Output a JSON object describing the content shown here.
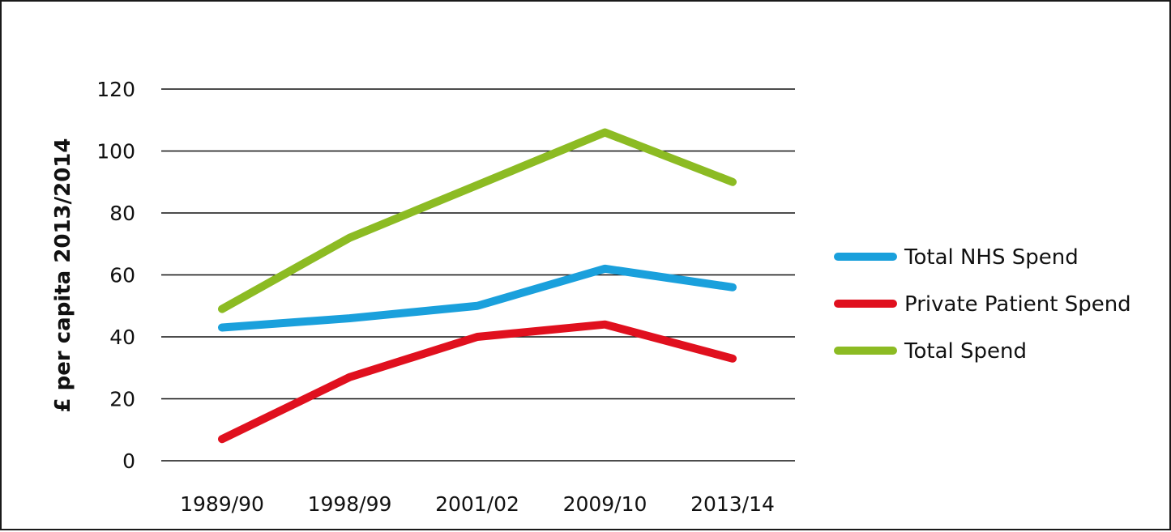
{
  "chart_data": {
    "type": "line",
    "title": "",
    "xlabel": "",
    "ylabel": "£ per capita 2013/2014",
    "categories": [
      "1989/90",
      "1998/99",
      "2001/02",
      "2009/10",
      "2013/14"
    ],
    "ylim": [
      0,
      120
    ],
    "yticks": [
      0,
      20,
      40,
      60,
      80,
      100,
      120
    ],
    "grid": true,
    "legend_position": "right",
    "series": [
      {
        "name": "Total NHS Spend",
        "color": "#1aa0dc",
        "values": [
          43,
          46,
          50,
          62,
          56
        ]
      },
      {
        "name": "Private Patient Spend",
        "color": "#e0101e",
        "values": [
          7,
          27,
          40,
          44,
          33
        ]
      },
      {
        "name": "Total Spend",
        "color": "#8cbb23",
        "values": [
          49,
          72,
          89,
          106,
          90
        ]
      }
    ]
  }
}
